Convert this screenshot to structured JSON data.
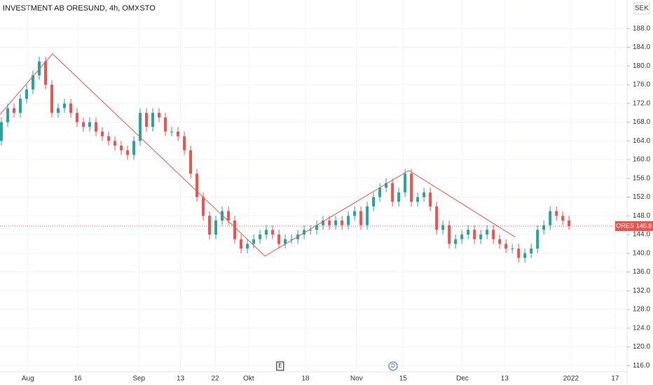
{
  "chart_data": {
    "type": "candlestick",
    "title": "INVESTMENT AB ORESUND, 4h, OMXSTO",
    "currency": "SEK",
    "up_color": "#26a69a",
    "down_color": "#ef5350",
    "open": [
      164,
      168,
      171,
      170,
      173,
      175,
      178,
      181,
      176,
      170,
      171,
      172,
      170,
      168,
      167,
      168,
      166,
      165,
      164,
      163,
      162,
      161,
      164,
      170,
      167,
      170,
      169,
      166,
      166,
      165,
      162,
      157,
      152,
      148,
      144,
      147,
      149,
      147,
      143,
      141,
      142,
      143,
      144,
      145,
      144,
      142,
      143,
      143,
      144,
      145,
      145,
      146,
      147,
      146,
      147,
      146,
      148,
      149,
      146,
      150,
      152,
      154,
      155,
      151,
      153,
      157,
      151,
      152,
      153,
      150,
      145,
      146,
      142,
      143,
      144,
      145,
      143,
      144,
      145,
      143,
      142,
      141,
      141,
      139,
      140,
      141,
      145,
      146,
      149,
      148,
      147
    ],
    "high": [
      169,
      172,
      172,
      174,
      176,
      179,
      182,
      182,
      177,
      172,
      173,
      173,
      171,
      169,
      169,
      169,
      167,
      166,
      165,
      164,
      163,
      165,
      171,
      171,
      171,
      171,
      170,
      167,
      167,
      166,
      163,
      158,
      153,
      149,
      148,
      150,
      150,
      148,
      144,
      143,
      144,
      145,
      146,
      146,
      145,
      144,
      144,
      145,
      146,
      146,
      147,
      148,
      148,
      148,
      148,
      149,
      150,
      150,
      151,
      153,
      155,
      156,
      156,
      154,
      158,
      158,
      153,
      154,
      154,
      151,
      147,
      147,
      144,
      145,
      146,
      146,
      145,
      146,
      146,
      144,
      143,
      142,
      142,
      141,
      142,
      146,
      147,
      150,
      150,
      149,
      148
    ],
    "low": [
      163,
      167,
      169,
      169,
      172,
      174,
      177,
      175,
      169,
      169,
      170,
      169,
      167,
      166,
      166,
      165,
      164,
      163,
      162,
      161,
      160,
      160,
      163,
      166,
      166,
      168,
      165,
      165,
      164,
      161,
      156,
      151,
      147,
      143,
      143,
      146,
      146,
      142,
      140,
      140,
      141,
      142,
      143,
      143,
      141,
      141,
      142,
      142,
      143,
      144,
      144,
      145,
      145,
      145,
      145,
      145,
      147,
      145,
      145,
      149,
      151,
      153,
      150,
      150,
      152,
      150,
      150,
      151,
      149,
      144,
      144,
      141,
      141,
      142,
      143,
      142,
      142,
      143,
      142,
      141,
      140,
      140,
      138,
      138,
      139,
      140,
      144,
      145,
      147,
      146,
      145
    ],
    "close": [
      168,
      171,
      170,
      173,
      175,
      178,
      181,
      176,
      170,
      171,
      172,
      170,
      168,
      167,
      168,
      166,
      165,
      164,
      163,
      162,
      161,
      164,
      170,
      167,
      170,
      169,
      166,
      166,
      165,
      162,
      157,
      152,
      148,
      144,
      147,
      149,
      147,
      143,
      141,
      142,
      143,
      144,
      145,
      144,
      142,
      143,
      143,
      144,
      145,
      145,
      146,
      147,
      146,
      147,
      146,
      148,
      149,
      146,
      150,
      152,
      154,
      155,
      151,
      153,
      157,
      151,
      152,
      153,
      150,
      145,
      146,
      142,
      143,
      144,
      145,
      143,
      144,
      145,
      143,
      142,
      141,
      141,
      139,
      140,
      141,
      145,
      146,
      149,
      148,
      147,
      145.8
    ],
    "ylim": [
      114.7,
      194.1
    ],
    "yticks": [
      {
        "value": 116,
        "label": "116.0"
      },
      {
        "value": 120,
        "label": "120.0"
      },
      {
        "value": 124,
        "label": "124.0"
      },
      {
        "value": 128,
        "label": "128.0"
      },
      {
        "value": 132,
        "label": "132.0"
      },
      {
        "value": 136,
        "label": "136.0"
      },
      {
        "value": 140,
        "label": "140.0"
      },
      {
        "value": 144,
        "label": "144.0"
      },
      {
        "value": 148,
        "label": "148.0"
      },
      {
        "value": 152,
        "label": "152.0"
      },
      {
        "value": 156,
        "label": "156.0"
      },
      {
        "value": 160,
        "label": "160.0"
      },
      {
        "value": 164,
        "label": "164.0"
      },
      {
        "value": 168,
        "label": "168.0"
      },
      {
        "value": 172,
        "label": "172.0"
      },
      {
        "value": 176,
        "label": "176.0"
      },
      {
        "value": 180,
        "label": "180.0"
      },
      {
        "value": 184,
        "label": "184.0"
      },
      {
        "value": 188,
        "label": "188.0"
      }
    ],
    "xlim": [
      -0.22,
      99.2
    ],
    "xticks": [
      {
        "value": 4.2,
        "label": "Aug"
      },
      {
        "value": 12.1,
        "label": "16"
      },
      {
        "value": 21.8,
        "label": "Sep"
      },
      {
        "value": 28.4,
        "label": "13"
      },
      {
        "value": 33.9,
        "label": "22"
      },
      {
        "value": 39.2,
        "label": "Okt"
      },
      {
        "value": 48.2,
        "label": "18"
      },
      {
        "value": 56.3,
        "label": "Nov"
      },
      {
        "value": 63.7,
        "label": "15"
      },
      {
        "value": 73.1,
        "label": "Dec"
      },
      {
        "value": 79.8,
        "label": "13"
      },
      {
        "value": 90.3,
        "label": "2022"
      },
      {
        "value": 97.3,
        "label": "17"
      }
    ],
    "grid": true,
    "price_label": {
      "symbol": "ORES",
      "value": 145.8,
      "color": "#ef5350"
    },
    "drawing": {
      "color": "#ef5350",
      "x": [
        -0.2,
        8.1,
        41.8,
        64.6,
        81.4
      ],
      "y": [
        169.7,
        182.6,
        139.4,
        157.7,
        143.5
      ]
    },
    "events": [
      {
        "x": 44.2,
        "label": "E"
      },
      {
        "x": 62.1,
        "label": "D"
      }
    ]
  }
}
